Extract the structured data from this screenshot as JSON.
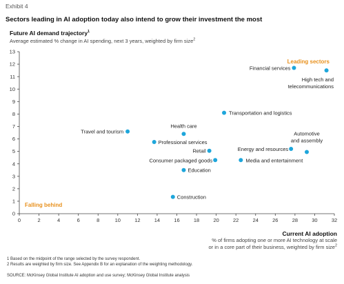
{
  "exhibit_label": "Exhibit 4",
  "chart_data": {
    "type": "scatter",
    "title": "Sectors leading in AI adoption today also intend to grow their investment the most",
    "ylabel": "Future AI demand trajectory",
    "ylabel_note": "1",
    "ysublabel": "Average estimated % change in AI spending, next 3 years, weighted by firm size",
    "ysublabel_note": "2",
    "xlabel": "Current AI adoption",
    "xsublabel_line1": "% of firms adopting one or more AI technology at scale",
    "xsublabel_line2": "or in a core part of their business, weighted by firm size",
    "xsublabel_note": "2",
    "xlim": [
      0,
      32
    ],
    "ylim": [
      0,
      13
    ],
    "xticks": [
      "0",
      "2",
      "4",
      "6",
      "8",
      "10",
      "12",
      "14",
      "16",
      "18",
      "20",
      "22",
      "24",
      "26",
      "28",
      "30",
      "32"
    ],
    "yticks": [
      "0",
      "1",
      "2",
      "3",
      "4",
      "5",
      "6",
      "7",
      "8",
      "9",
      "10",
      "11",
      "12",
      "13"
    ],
    "marker_color": "#1ea6db",
    "annotation_color": "#e8901c",
    "annotations": {
      "top_right": "Leading sectors",
      "bottom_left": "Falling behind"
    },
    "points": [
      {
        "label": "Financial services",
        "x": 27.9,
        "y": 11.7
      },
      {
        "label": "High tech and",
        "label2": "telecommunications",
        "x": 31.2,
        "y": 11.5
      },
      {
        "label": "Transportation and logistics",
        "x": 20.8,
        "y": 8.1
      },
      {
        "label": "Travel and tourism",
        "x": 11.0,
        "y": 6.6
      },
      {
        "label": "Health care",
        "x": 16.7,
        "y": 6.4
      },
      {
        "label": "Professional services",
        "x": 13.7,
        "y": 5.75
      },
      {
        "label": "Retail",
        "x": 19.3,
        "y": 5.05
      },
      {
        "label": "Energy and resources",
        "x": 27.6,
        "y": 5.2
      },
      {
        "label": "Automotive",
        "label2": "and assembly",
        "x": 29.2,
        "y": 4.95
      },
      {
        "label": "Consumer packaged goods",
        "x": 19.9,
        "y": 4.3
      },
      {
        "label": "Media and entertainment",
        "x": 22.5,
        "y": 4.3
      },
      {
        "label": "Education",
        "x": 16.7,
        "y": 3.5
      },
      {
        "label": "Construction",
        "x": 15.6,
        "y": 1.35
      }
    ]
  },
  "footnotes": [
    "1  Based on the midpoint of the range selected by the survey respondent.",
    "2  Results are weighted by firm size. See Appendix B for an explanation of the weighting methodology."
  ],
  "source": "SOURCE:  McKinsey Global Institute AI adoption and use survey; McKinsey Global Institute analysis"
}
